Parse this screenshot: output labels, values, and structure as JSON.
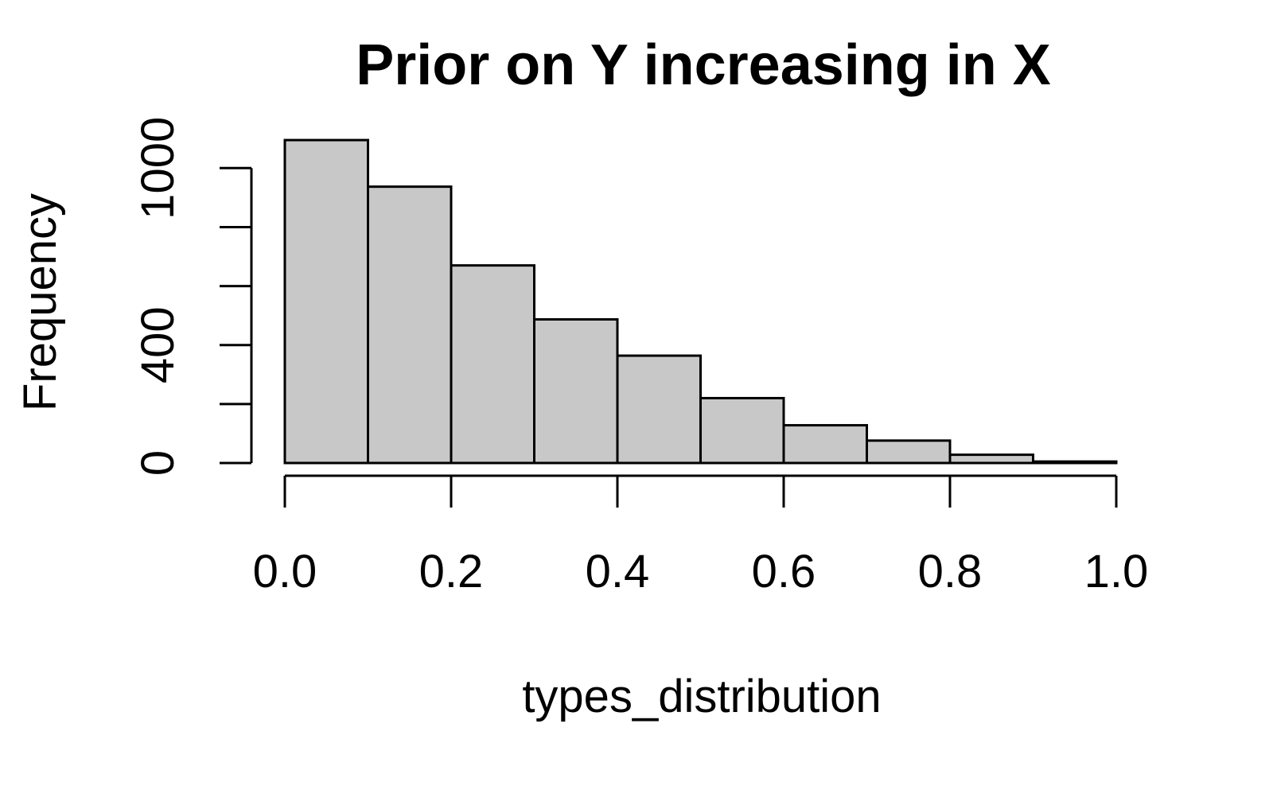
{
  "chart_data": {
    "type": "bar",
    "title": "Prior on Y increasing in X",
    "xlabel": "types_distribution",
    "ylabel": "Frequency",
    "bin_edges": [
      0.0,
      0.1,
      0.2,
      0.3,
      0.4,
      0.5,
      0.6,
      0.7,
      0.8,
      0.9,
      1.0
    ],
    "values": [
      1095,
      937,
      670,
      487,
      364,
      220,
      128,
      76,
      28,
      5
    ],
    "xlim": [
      0,
      1
    ],
    "ylim": [
      0,
      1100
    ],
    "x_ticks": [
      {
        "value": 0.0,
        "label": "0.0"
      },
      {
        "value": 0.2,
        "label": "0.2"
      },
      {
        "value": 0.4,
        "label": "0.4"
      },
      {
        "value": 0.6,
        "label": "0.6"
      },
      {
        "value": 0.8,
        "label": "0.8"
      },
      {
        "value": 1.0,
        "label": "1.0"
      }
    ],
    "y_ticks": [
      {
        "value": 0,
        "label": "0"
      },
      {
        "value": 200,
        "label": ""
      },
      {
        "value": 400,
        "label": "400"
      },
      {
        "value": 600,
        "label": ""
      },
      {
        "value": 800,
        "label": ""
      },
      {
        "value": 1000,
        "label": "1000"
      }
    ],
    "grid": false,
    "colors": {
      "bar_fill": "#c8c8c8",
      "bar_stroke": "#000000",
      "axis": "#000000"
    }
  }
}
